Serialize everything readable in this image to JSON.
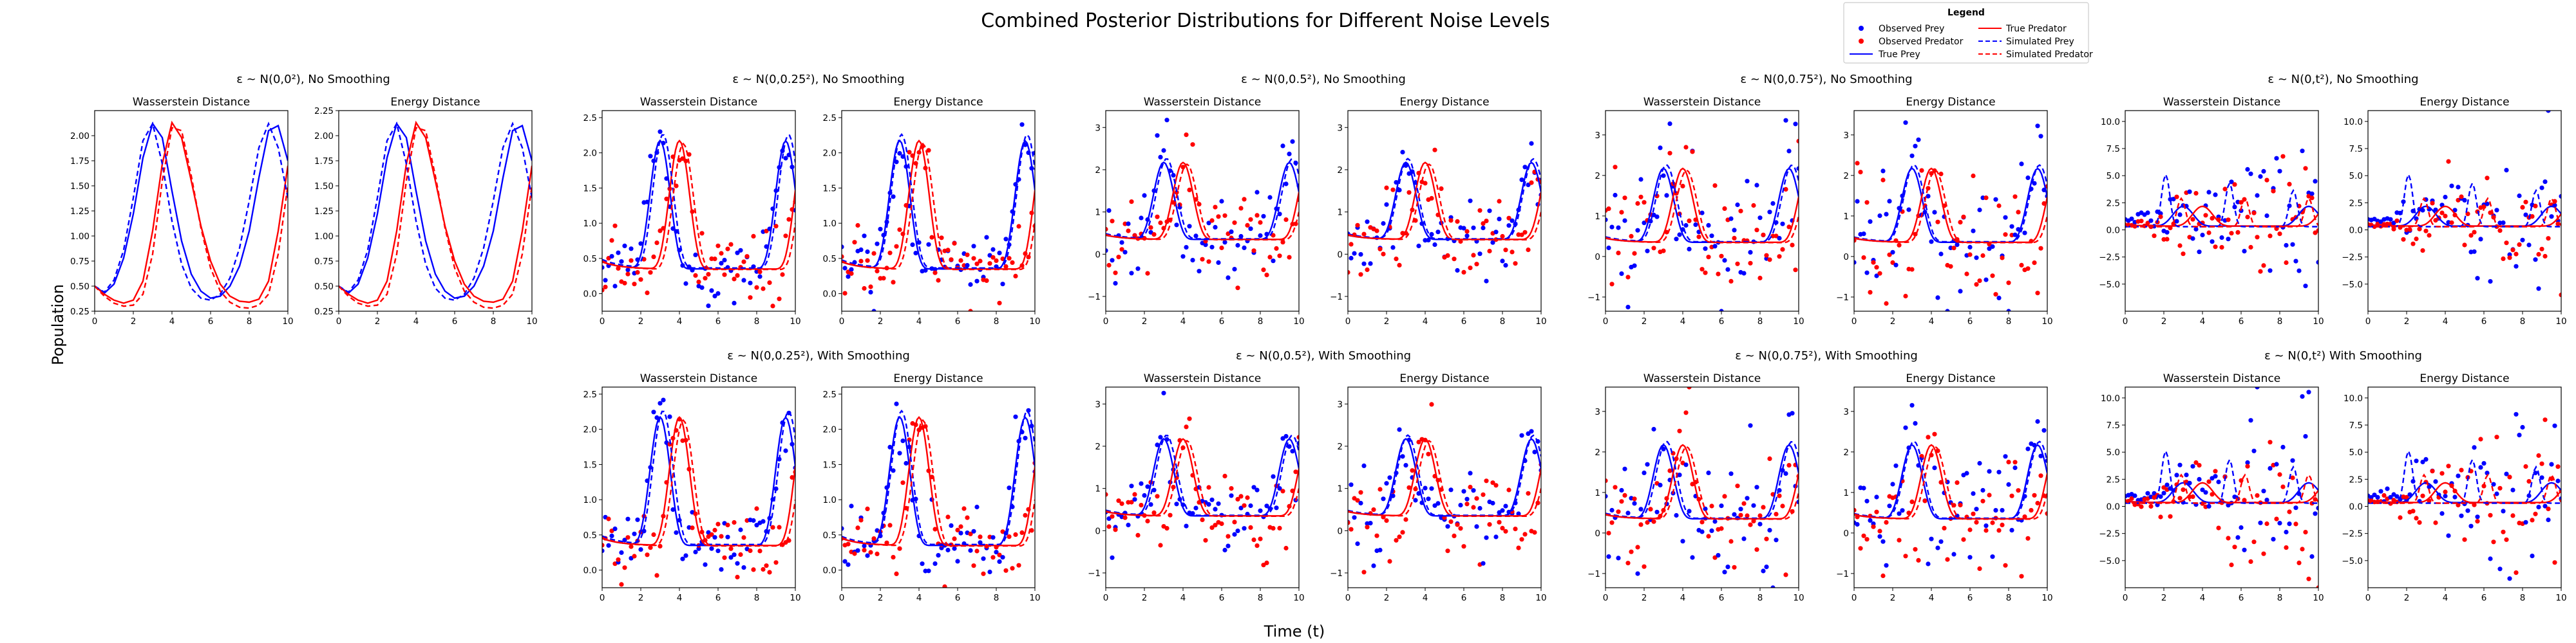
{
  "figure": {
    "suptitle": "Combined Posterior Distributions for Different Noise Levels",
    "ylabel": "Population",
    "xlabel": "Time (t)"
  },
  "legend": {
    "title": "Legend",
    "entries": [
      {
        "label": "Observed Prey",
        "kind": "marker",
        "color": "#0000ff"
      },
      {
        "label": "Observed Predator",
        "kind": "marker",
        "color": "#ff0000"
      },
      {
        "label": "True Prey",
        "kind": "solid",
        "color": "#0000ff"
      },
      {
        "label": "True Predator",
        "kind": "solid",
        "color": "#ff0000"
      },
      {
        "label": "Simulated Prey",
        "kind": "dashed",
        "color": "#0000ff"
      },
      {
        "label": "Simulated Predator",
        "kind": "dashed",
        "color": "#ff0000"
      }
    ]
  },
  "colors": {
    "prey": "#0000ff",
    "predator": "#ff0000",
    "axes": "#000000"
  },
  "chart_data": [
    {
      "type": "line",
      "group_title": "ε ~ N(0,0²), No Smoothing",
      "panel_title": "Wasserstein Distance",
      "sigma": 0,
      "smoothing": false,
      "xlim": [
        0,
        10
      ],
      "ylim": [
        0.25,
        2.25
      ],
      "xticks": [
        "0",
        "2",
        "4",
        "6",
        "8",
        "10"
      ],
      "yticks": [
        "0.25",
        "0.50",
        "0.75",
        "1.00",
        "1.25",
        "1.50",
        "1.75",
        "2.00"
      ],
      "x": [
        0,
        0.5,
        1,
        1.5,
        2,
        2.5,
        3,
        3.5,
        4,
        4.5,
        5,
        5.5,
        6,
        6.5,
        7,
        7.5,
        8,
        8.5,
        9,
        9.5,
        10
      ],
      "series": [
        {
          "name": "True Prey",
          "values": [
            0.5,
            0.43,
            0.52,
            0.78,
            1.22,
            1.78,
            2.12,
            1.98,
            1.45,
            0.95,
            0.62,
            0.45,
            0.38,
            0.4,
            0.5,
            0.7,
            1.05,
            1.58,
            2.05,
            2.1,
            1.75
          ]
        },
        {
          "name": "True Predator",
          "values": [
            0.5,
            0.42,
            0.36,
            0.33,
            0.36,
            0.55,
            1.05,
            1.72,
            2.13,
            1.98,
            1.55,
            1.1,
            0.75,
            0.52,
            0.4,
            0.35,
            0.34,
            0.37,
            0.55,
            1.05,
            1.7
          ]
        },
        {
          "name": "Simulated Prey",
          "values": [
            0.5,
            0.44,
            0.56,
            0.86,
            1.38,
            1.95,
            2.12,
            1.72,
            1.15,
            0.72,
            0.48,
            0.38,
            0.36,
            0.42,
            0.58,
            0.88,
            1.35,
            1.88,
            2.12,
            1.88,
            1.38
          ]
        },
        {
          "name": "Simulated Predator",
          "values": [
            0.5,
            0.4,
            0.33,
            0.3,
            0.31,
            0.42,
            0.82,
            1.55,
            2.08,
            2.05,
            1.6,
            1.08,
            0.68,
            0.45,
            0.34,
            0.29,
            0.28,
            0.31,
            0.42,
            0.82,
            1.5
          ]
        }
      ]
    },
    {
      "type": "line",
      "group_title": "ε ~ N(0,0²), No Smoothing",
      "panel_title": "Energy Distance",
      "sigma": 0,
      "smoothing": false,
      "xlim": [
        0,
        10
      ],
      "ylim": [
        0.25,
        2.25
      ],
      "xticks": [
        "0",
        "2",
        "4",
        "6",
        "8",
        "10"
      ],
      "yticks": [
        "0.25",
        "0.50",
        "0.75",
        "1.00",
        "1.25",
        "1.50",
        "1.75",
        "2.00",
        "2.25"
      ],
      "x": [
        0,
        0.5,
        1,
        1.5,
        2,
        2.5,
        3,
        3.5,
        4,
        4.5,
        5,
        5.5,
        6,
        6.5,
        7,
        7.5,
        8,
        8.5,
        9,
        9.5,
        10
      ],
      "series": [
        {
          "name": "True Prey",
          "values": [
            0.5,
            0.43,
            0.52,
            0.78,
            1.22,
            1.78,
            2.12,
            1.98,
            1.45,
            0.95,
            0.62,
            0.45,
            0.38,
            0.4,
            0.5,
            0.7,
            1.05,
            1.58,
            2.05,
            2.1,
            1.75
          ]
        },
        {
          "name": "True Predator",
          "values": [
            0.5,
            0.42,
            0.36,
            0.33,
            0.36,
            0.55,
            1.05,
            1.72,
            2.13,
            1.98,
            1.55,
            1.1,
            0.75,
            0.52,
            0.4,
            0.35,
            0.34,
            0.37,
            0.55,
            1.05,
            1.7
          ]
        },
        {
          "name": "Simulated Prey",
          "values": [
            0.5,
            0.44,
            0.56,
            0.86,
            1.38,
            1.95,
            2.12,
            1.72,
            1.15,
            0.72,
            0.48,
            0.38,
            0.36,
            0.42,
            0.58,
            0.88,
            1.35,
            1.88,
            2.12,
            1.88,
            1.38
          ]
        },
        {
          "name": "Simulated Predator",
          "values": [
            0.5,
            0.4,
            0.33,
            0.3,
            0.31,
            0.42,
            0.82,
            1.55,
            2.08,
            2.05,
            1.6,
            1.08,
            0.68,
            0.45,
            0.34,
            0.29,
            0.28,
            0.31,
            0.42,
            0.82,
            1.5
          ]
        }
      ]
    },
    {
      "type": "line",
      "group_title": "ε ~ N(0,0.25²), No Smoothing",
      "panel_title": "Wasserstein Distance",
      "sigma": 0.25,
      "smoothing": false,
      "xlim": [
        0,
        10
      ],
      "ylim": [
        -0.25,
        2.6
      ],
      "xticks": [
        "0",
        "2",
        "4",
        "6",
        "8",
        "10"
      ],
      "yticks": [
        "0.0",
        "0.5",
        "1.0",
        "1.5",
        "2.0",
        "2.5"
      ]
    },
    {
      "type": "line",
      "group_title": "ε ~ N(0,0.25²), No Smoothing",
      "panel_title": "Energy Distance",
      "sigma": 0.25,
      "smoothing": false,
      "xlim": [
        0,
        10
      ],
      "ylim": [
        -0.25,
        2.6
      ],
      "xticks": [
        "0",
        "2",
        "4",
        "6",
        "8",
        "10"
      ],
      "yticks": [
        "0.0",
        "0.5",
        "1.0",
        "1.5",
        "2.0",
        "2.5"
      ]
    },
    {
      "type": "line",
      "group_title": "ε ~ N(0,0.5²), No Smoothing",
      "panel_title": "Wasserstein Distance",
      "sigma": 0.5,
      "smoothing": false,
      "xlim": [
        0,
        10
      ],
      "ylim": [
        -1.35,
        3.4
      ],
      "xticks": [
        "0",
        "2",
        "4",
        "6",
        "8",
        "10"
      ],
      "yticks": [
        "−1",
        "0",
        "1",
        "2",
        "3"
      ]
    },
    {
      "type": "line",
      "group_title": "ε ~ N(0,0.5²), No Smoothing",
      "panel_title": "Energy Distance",
      "sigma": 0.5,
      "smoothing": false,
      "xlim": [
        0,
        10
      ],
      "ylim": [
        -1.35,
        3.4
      ],
      "xticks": [
        "0",
        "2",
        "4",
        "6",
        "8",
        "10"
      ],
      "yticks": [
        "−1",
        "0",
        "1",
        "2",
        "3"
      ]
    },
    {
      "type": "line",
      "group_title": "ε ~ N(0,0.75²), No Smoothing",
      "panel_title": "Wasserstein Distance",
      "sigma": 0.75,
      "smoothing": false,
      "xlim": [
        0,
        10
      ],
      "ylim": [
        -1.35,
        3.6
      ],
      "xticks": [
        "0",
        "2",
        "4",
        "6",
        "8",
        "10"
      ],
      "yticks": [
        "−1",
        "0",
        "1",
        "2",
        "3"
      ]
    },
    {
      "type": "line",
      "group_title": "ε ~ N(0,0.75²), No Smoothing",
      "panel_title": "Energy Distance",
      "sigma": 0.75,
      "smoothing": false,
      "xlim": [
        0,
        10
      ],
      "ylim": [
        -1.35,
        3.6
      ],
      "xticks": [
        "0",
        "2",
        "4",
        "6",
        "8",
        "10"
      ],
      "yticks": [
        "−1",
        "0",
        "1",
        "2",
        "3"
      ]
    },
    {
      "type": "line",
      "group_title": "ε ~ N(0,t²), No Smoothing",
      "panel_title": "Wasserstein Distance",
      "sigma": "t",
      "smoothing": false,
      "xlim": [
        0,
        10
      ],
      "ylim": [
        -7.5,
        11
      ],
      "xticks": [
        "0",
        "2",
        "4",
        "6",
        "8",
        "10"
      ],
      "yticks": [
        "−5.0",
        "−2.5",
        "0.0",
        "2.5",
        "5.0",
        "7.5",
        "10.0"
      ]
    },
    {
      "type": "line",
      "group_title": "ε ~ N(0,t²), No Smoothing",
      "panel_title": "Energy Distance",
      "sigma": "t",
      "smoothing": false,
      "xlim": [
        0,
        10
      ],
      "ylim": [
        -7.5,
        11
      ],
      "xticks": [
        "0",
        "2",
        "4",
        "6",
        "8",
        "10"
      ],
      "yticks": [
        "−5.0",
        "−2.5",
        "0.0",
        "2.5",
        "5.0",
        "7.5",
        "10.0"
      ]
    },
    {
      "type": "line",
      "group_title": "ε ~ N(0,0.25²), With Smoothing",
      "panel_title": "Wasserstein Distance",
      "sigma": 0.25,
      "smoothing": true,
      "xlim": [
        0,
        10
      ],
      "ylim": [
        -0.25,
        2.6
      ],
      "xticks": [
        "0",
        "2",
        "4",
        "6",
        "8",
        "10"
      ],
      "yticks": [
        "0.0",
        "0.5",
        "1.0",
        "1.5",
        "2.0",
        "2.5"
      ]
    },
    {
      "type": "line",
      "group_title": "ε ~ N(0,0.25²), With Smoothing",
      "panel_title": "Energy Distance",
      "sigma": 0.25,
      "smoothing": true,
      "xlim": [
        0,
        10
      ],
      "ylim": [
        -0.25,
        2.6
      ],
      "xticks": [
        "0",
        "2",
        "4",
        "6",
        "8",
        "10"
      ],
      "yticks": [
        "0.0",
        "0.5",
        "1.0",
        "1.5",
        "2.0",
        "2.5"
      ]
    },
    {
      "type": "line",
      "group_title": "ε ~ N(0,0.5²), With Smoothing",
      "panel_title": "Wasserstein Distance",
      "sigma": 0.5,
      "smoothing": true,
      "xlim": [
        0,
        10
      ],
      "ylim": [
        -1.35,
        3.4
      ],
      "xticks": [
        "0",
        "2",
        "4",
        "6",
        "8",
        "10"
      ],
      "yticks": [
        "−1",
        "0",
        "1",
        "2",
        "3"
      ]
    },
    {
      "type": "line",
      "group_title": "ε ~ N(0,0.5²), With Smoothing",
      "panel_title": "Energy Distance",
      "sigma": 0.5,
      "smoothing": true,
      "xlim": [
        0,
        10
      ],
      "ylim": [
        -1.35,
        3.4
      ],
      "xticks": [
        "0",
        "2",
        "4",
        "6",
        "8",
        "10"
      ],
      "yticks": [
        "−1",
        "0",
        "1",
        "2",
        "3"
      ]
    },
    {
      "type": "line",
      "group_title": "ε ~ N(0,0.75²), With Smoothing",
      "panel_title": "Wasserstein Distance",
      "sigma": 0.75,
      "smoothing": true,
      "xlim": [
        0,
        10
      ],
      "ylim": [
        -1.35,
        3.6
      ],
      "xticks": [
        "0",
        "2",
        "4",
        "6",
        "8",
        "10"
      ],
      "yticks": [
        "−1",
        "0",
        "1",
        "2",
        "3"
      ]
    },
    {
      "type": "line",
      "group_title": "ε ~ N(0,0.75²), With Smoothing",
      "panel_title": "Energy Distance",
      "sigma": 0.75,
      "smoothing": true,
      "xlim": [
        0,
        10
      ],
      "ylim": [
        -1.35,
        3.6
      ],
      "xticks": [
        "0",
        "2",
        "4",
        "6",
        "8",
        "10"
      ],
      "yticks": [
        "−1",
        "0",
        "1",
        "2",
        "3"
      ]
    },
    {
      "type": "line",
      "group_title": "ε ~ N(0,t²) With Smoothing",
      "panel_title": "Wasserstein Distance",
      "sigma": "t",
      "smoothing": true,
      "xlim": [
        0,
        10
      ],
      "ylim": [
        -7.5,
        11
      ],
      "xticks": [
        "0",
        "2",
        "4",
        "6",
        "8",
        "10"
      ],
      "yticks": [
        "−5.0",
        "−2.5",
        "0.0",
        "2.5",
        "5.0",
        "7.5",
        "10.0"
      ]
    },
    {
      "type": "line",
      "group_title": "ε ~ N(0,t²) With Smoothing",
      "panel_title": "Energy Distance",
      "sigma": "t",
      "smoothing": true,
      "xlim": [
        0,
        10
      ],
      "ylim": [
        -7.5,
        11
      ],
      "xticks": [
        "0",
        "2",
        "4",
        "6",
        "8",
        "10"
      ],
      "yticks": [
        "−5.0",
        "−2.5",
        "0.0",
        "2.5",
        "5.0",
        "7.5",
        "10.0"
      ]
    }
  ]
}
